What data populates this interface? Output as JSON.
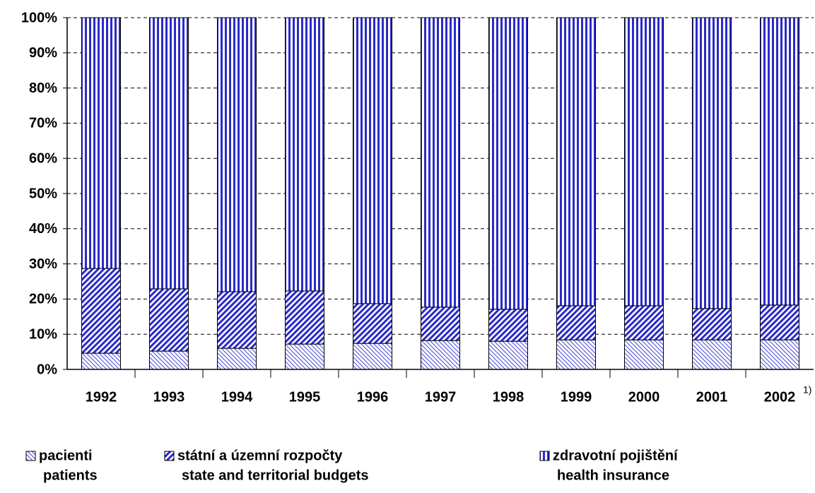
{
  "chart_data": {
    "type": "stacked_bar",
    "categories": [
      "1992",
      "1993",
      "1994",
      "1995",
      "1996",
      "1997",
      "1998",
      "1999",
      "2000",
      "2001",
      "2002"
    ],
    "annotations": [
      {
        "category": 10,
        "text": "1)"
      }
    ],
    "series": [
      {
        "name": "pacienti",
        "name_en": "patients",
        "color": "#3a3ad0",
        "hatch": "backslash",
        "values": [
          4.6,
          5.2,
          6.0,
          7.2,
          7.4,
          8.2,
          8.0,
          8.4,
          8.4,
          8.4,
          8.4
        ]
      },
      {
        "name": "státní a územní rozpočty",
        "name_en": "state and territorial budgets",
        "color": "#2a2ac8",
        "hatch": "slash",
        "values": [
          24.1,
          17.7,
          16.1,
          15.1,
          11.3,
          9.5,
          9.1,
          9.7,
          9.7,
          8.9,
          9.9
        ]
      },
      {
        "name": "zdravotní pojištění",
        "name_en": "health insurance",
        "color": "#2a2ac8",
        "hatch": "vertical",
        "values": [
          71.3,
          77.1,
          77.9,
          77.7,
          81.3,
          82.3,
          82.9,
          81.9,
          81.9,
          82.7,
          81.7
        ]
      }
    ],
    "ylim": [
      0,
      100
    ],
    "yticks": [
      {
        "value": 0,
        "label": "0%"
      },
      {
        "value": 10,
        "label": "10%"
      },
      {
        "value": 20,
        "label": "20%"
      },
      {
        "value": 30,
        "label": "30%"
      },
      {
        "value": 40,
        "label": "40%"
      },
      {
        "value": 50,
        "label": "50%"
      },
      {
        "value": 60,
        "label": "60%"
      },
      {
        "value": 70,
        "label": "70%"
      },
      {
        "value": 80,
        "label": "80%"
      },
      {
        "value": 90,
        "label": "90%"
      },
      {
        "value": 100,
        "label": "100%"
      }
    ],
    "grid": true
  }
}
